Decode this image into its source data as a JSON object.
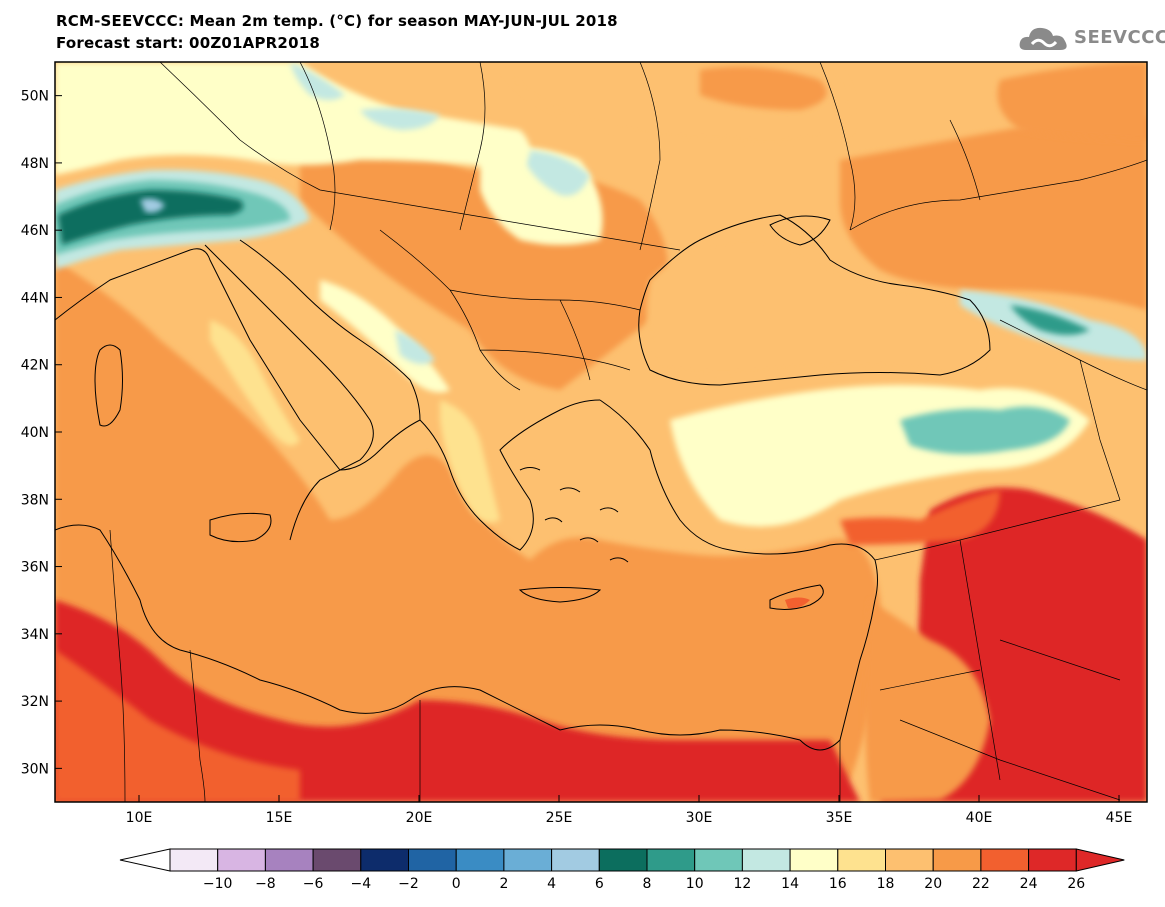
{
  "header": {
    "title_line1": "RCM-SEEVCCC: Mean 2m temp. (°C) for season MAY-JUN-JUL 2018",
    "title_line2": "Forecast start: 00Z01APR2018"
  },
  "logo": {
    "text": "SEEVCCC",
    "icon": "cloud-icon",
    "color": "#8a8a8a"
  },
  "map": {
    "lon_range": [
      7,
      46
    ],
    "lat_range": [
      29,
      51
    ],
    "lat_ticks": [
      "50N",
      "48N",
      "46N",
      "44N",
      "42N",
      "40N",
      "38N",
      "36N",
      "34N",
      "32N",
      "30N"
    ],
    "lon_ticks": [
      "10E",
      "15E",
      "20E",
      "25E",
      "30E",
      "35E",
      "40E",
      "45E"
    ]
  },
  "colorbar": {
    "labels": [
      "−10",
      "−8",
      "−6",
      "−4",
      "−2",
      "0",
      "2",
      "4",
      "6",
      "8",
      "10",
      "12",
      "14",
      "16",
      "18",
      "20",
      "22",
      "24",
      "26"
    ],
    "colors": [
      "#f3e9f6",
      "#d8b5e3",
      "#a782bf",
      "#6a4a6e",
      "#0d2c6b",
      "#2064a4",
      "#3a8cc4",
      "#6aaed6",
      "#a2cbe2",
      "#0c6e5e",
      "#2f9b8a",
      "#6fc7b8",
      "#c3e8e2",
      "#ffffc8",
      "#fee28f",
      "#fdc070",
      "#f79a48",
      "#f2602f",
      "#de2828"
    ],
    "low_color": "#ffffff",
    "high_color": "#de2828"
  },
  "palette": {
    "red": "#de2828",
    "orange_red": "#f2602f",
    "orange": "#f79a48",
    "light_orange": "#fdc070",
    "yellow": "#fee28f",
    "pale_yellow": "#ffffc8",
    "pale_teal": "#c3e8e2",
    "teal": "#6fc7b8",
    "dark_teal": "#2f9b8a",
    "deep_teal": "#0c6e5e",
    "light_blue": "#a2cbe2"
  }
}
